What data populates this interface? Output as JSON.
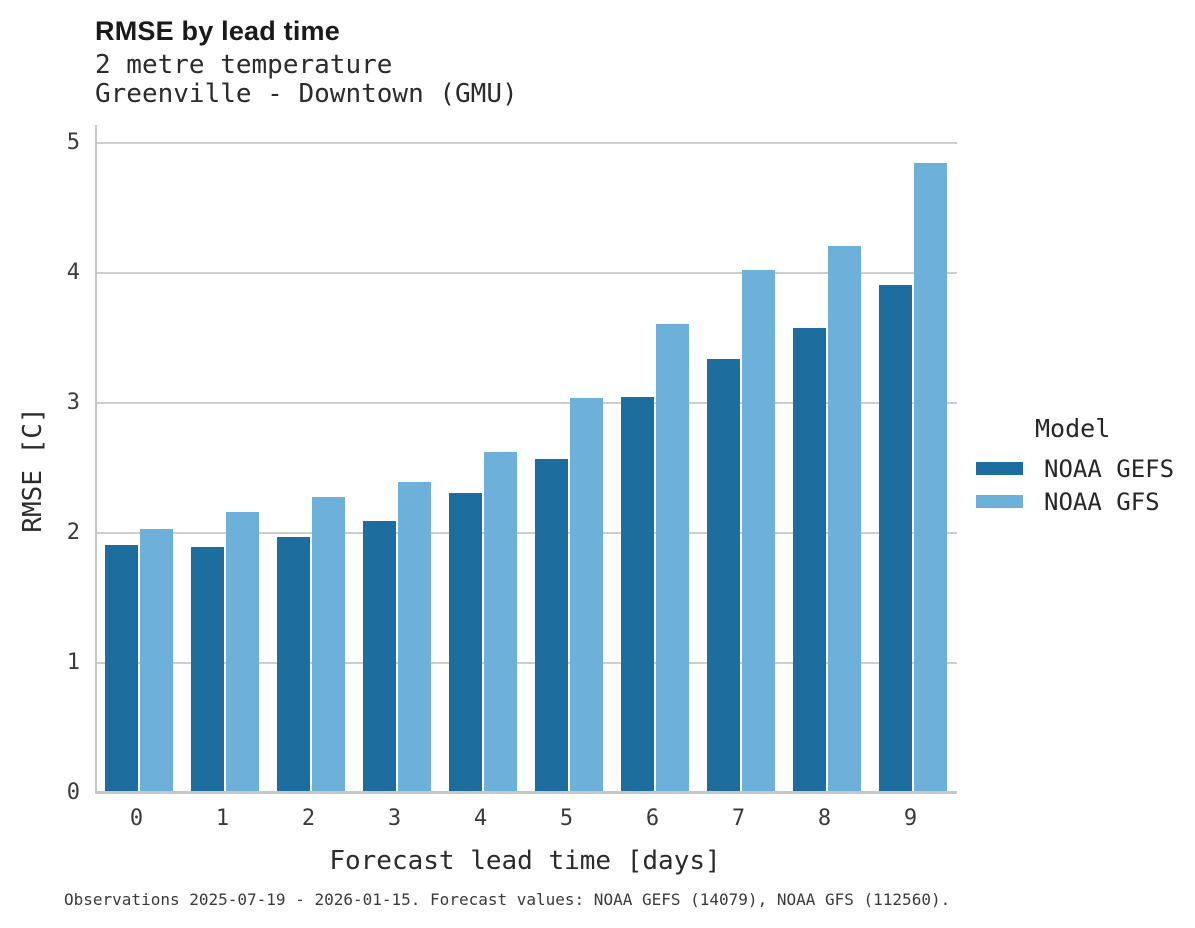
{
  "header": {
    "title": "RMSE by lead time",
    "subtitle_line1": "2 metre temperature",
    "subtitle_line2": "Greenville - Downtown (GMU)"
  },
  "chart_data": {
    "type": "bar",
    "title": "RMSE by lead time",
    "subtitle": [
      "2 metre temperature",
      "Greenville - Downtown (GMU)"
    ],
    "categories": [
      "0",
      "1",
      "2",
      "3",
      "4",
      "5",
      "6",
      "7",
      "8",
      "9"
    ],
    "series": [
      {
        "name": "NOAA GEFS",
        "color": "#1d6d9e",
        "values": [
          1.91,
          1.89,
          1.97,
          2.09,
          2.31,
          2.57,
          3.05,
          3.34,
          3.58,
          3.91
        ]
      },
      {
        "name": "NOAA GFS",
        "color": "#6db1db",
        "values": [
          2.03,
          2.16,
          2.28,
          2.39,
          2.62,
          3.04,
          3.61,
          4.02,
          4.21,
          4.85
        ]
      }
    ],
    "xlabel": "Forecast lead time [days]",
    "ylabel": "RMSE [C]",
    "ylim": [
      0,
      5
    ],
    "yticks": [
      0,
      1,
      2,
      3,
      4,
      5
    ],
    "grid": "horizontal",
    "legend_title": "Model",
    "legend_position": "right"
  },
  "legend": {
    "title": "Model",
    "entries": [
      "NOAA GEFS",
      "NOAA GFS"
    ]
  },
  "footer": {
    "note": "Observations 2025-07-19 - 2026-01-15. Forecast values: NOAA GEFS (14079), NOAA GFS (112560)."
  }
}
